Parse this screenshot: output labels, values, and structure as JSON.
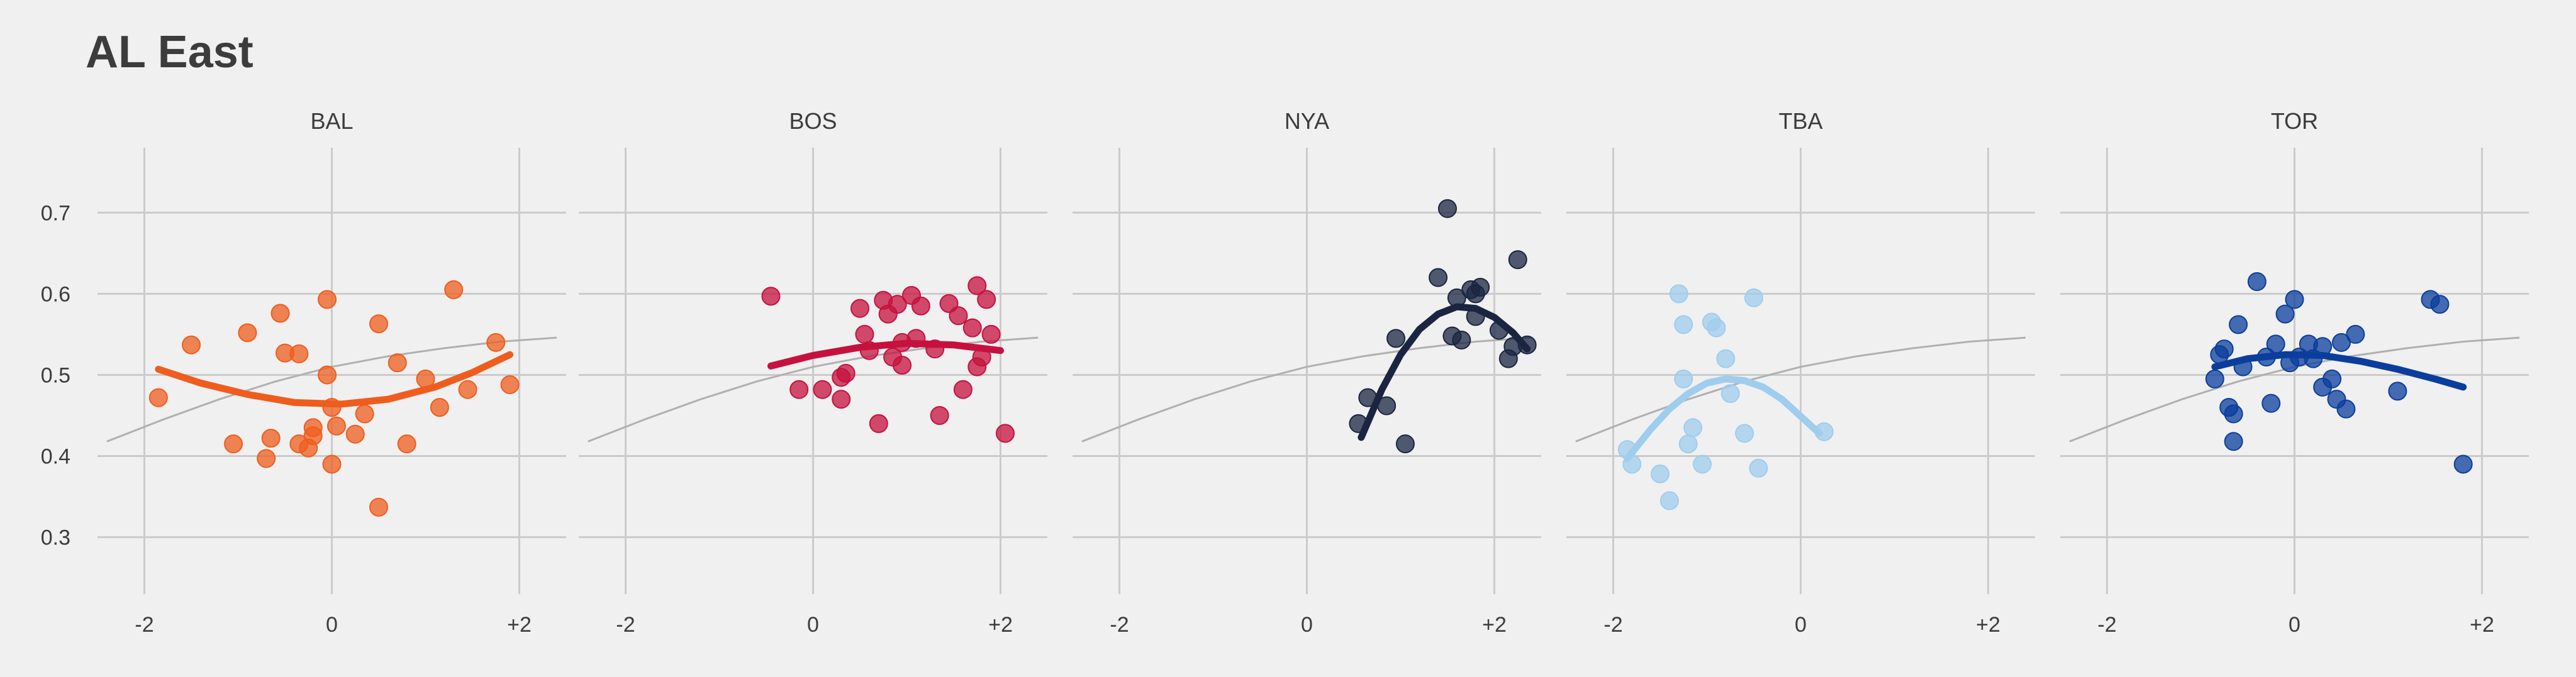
{
  "title": "AL East",
  "colors": {
    "background": "#f0f0f0",
    "grid": "#cbcbcb",
    "reference_curve": "#b0b0b0",
    "text": "#3c3c3c"
  },
  "chart_data": {
    "type": "scatter",
    "title": "AL East",
    "facets": [
      "BAL",
      "BOS",
      "NYA",
      "TBA",
      "TOR"
    ],
    "xlim": [
      -2.5,
      2.5
    ],
    "ylim": [
      0.23,
      0.78
    ],
    "x_ticks": [
      -2,
      0,
      2
    ],
    "x_tick_labels": [
      "-2",
      "0",
      "+2"
    ],
    "y_ticks": [
      0.3,
      0.4,
      0.5,
      0.6,
      0.7
    ],
    "y_tick_labels": [
      "0.3",
      "0.4",
      "0.5",
      "0.6",
      "0.7"
    ],
    "grid": true,
    "reference_curve": {
      "x": [
        -2.4,
        -1.8,
        -1.2,
        -0.6,
        0,
        0.6,
        1.2,
        1.8,
        2.4
      ],
      "y": [
        0.418,
        0.445,
        0.47,
        0.492,
        0.51,
        0.523,
        0.533,
        0.541,
        0.546
      ]
    },
    "series": [
      {
        "name": "BAL",
        "color": "#ef5d1e",
        "points": [
          [
            -1.85,
            0.472
          ],
          [
            -1.5,
            0.537
          ],
          [
            -1.05,
            0.415
          ],
          [
            -0.9,
            0.552
          ],
          [
            -0.7,
            0.397
          ],
          [
            -0.65,
            0.422
          ],
          [
            -0.55,
            0.576
          ],
          [
            -0.5,
            0.527
          ],
          [
            -0.35,
            0.526
          ],
          [
            -0.35,
            0.415
          ],
          [
            -0.25,
            0.41
          ],
          [
            -0.2,
            0.435
          ],
          [
            -0.2,
            0.425
          ],
          [
            -0.05,
            0.593
          ],
          [
            -0.05,
            0.5
          ],
          [
            0.0,
            0.39
          ],
          [
            0.0,
            0.46
          ],
          [
            0.05,
            0.437
          ],
          [
            0.25,
            0.427
          ],
          [
            0.35,
            0.452
          ],
          [
            0.5,
            0.337
          ],
          [
            0.5,
            0.563
          ],
          [
            0.7,
            0.515
          ],
          [
            0.8,
            0.415
          ],
          [
            1.0,
            0.495
          ],
          [
            1.15,
            0.46
          ],
          [
            1.3,
            0.605
          ],
          [
            1.45,
            0.482
          ],
          [
            1.75,
            0.54
          ],
          [
            1.9,
            0.488
          ]
        ],
        "fit": {
          "x": [
            -1.85,
            -1.4,
            -0.9,
            -0.4,
            0.1,
            0.6,
            1.1,
            1.5,
            1.9
          ],
          "y": [
            0.507,
            0.49,
            0.476,
            0.466,
            0.464,
            0.47,
            0.485,
            0.503,
            0.525
          ]
        }
      },
      {
        "name": "BOS",
        "color": "#c6113e",
        "points": [
          [
            -0.45,
            0.597
          ],
          [
            -0.15,
            0.482
          ],
          [
            0.1,
            0.482
          ],
          [
            0.3,
            0.47
          ],
          [
            0.3,
            0.497
          ],
          [
            0.35,
            0.502
          ],
          [
            0.5,
            0.582
          ],
          [
            0.55,
            0.55
          ],
          [
            0.6,
            0.53
          ],
          [
            0.7,
            0.44
          ],
          [
            0.75,
            0.592
          ],
          [
            0.8,
            0.575
          ],
          [
            0.85,
            0.522
          ],
          [
            0.9,
            0.587
          ],
          [
            0.95,
            0.54
          ],
          [
            0.95,
            0.512
          ],
          [
            1.05,
            0.598
          ],
          [
            1.1,
            0.545
          ],
          [
            1.15,
            0.585
          ],
          [
            1.3,
            0.532
          ],
          [
            1.35,
            0.45
          ],
          [
            1.45,
            0.588
          ],
          [
            1.55,
            0.573
          ],
          [
            1.6,
            0.482
          ],
          [
            1.7,
            0.558
          ],
          [
            1.75,
            0.61
          ],
          [
            1.75,
            0.51
          ],
          [
            1.8,
            0.522
          ],
          [
            1.85,
            0.593
          ],
          [
            1.9,
            0.55
          ],
          [
            2.05,
            0.428
          ]
        ],
        "fit": {
          "x": [
            -0.45,
            0.0,
            0.5,
            1.0,
            1.5,
            2.0
          ],
          "y": [
            0.511,
            0.524,
            0.534,
            0.539,
            0.537,
            0.53
          ]
        }
      },
      {
        "name": "NYA",
        "color": "#1b2541",
        "points": [
          [
            0.55,
            0.44
          ],
          [
            0.65,
            0.472
          ],
          [
            0.85,
            0.462
          ],
          [
            0.95,
            0.545
          ],
          [
            1.05,
            0.415
          ],
          [
            1.4,
            0.62
          ],
          [
            1.5,
            0.705
          ],
          [
            1.55,
            0.548
          ],
          [
            1.6,
            0.595
          ],
          [
            1.65,
            0.543
          ],
          [
            1.75,
            0.605
          ],
          [
            1.8,
            0.572
          ],
          [
            1.8,
            0.6
          ],
          [
            1.85,
            0.608
          ],
          [
            2.05,
            0.555
          ],
          [
            2.15,
            0.52
          ],
          [
            2.2,
            0.535
          ],
          [
            2.25,
            0.642
          ],
          [
            2.35,
            0.537
          ]
        ],
        "fit": {
          "x": [
            0.58,
            0.8,
            1.0,
            1.2,
            1.4,
            1.6,
            1.8,
            2.0,
            2.2,
            2.35
          ],
          "y": [
            0.423,
            0.482,
            0.525,
            0.556,
            0.575,
            0.584,
            0.582,
            0.571,
            0.552,
            0.532
          ]
        }
      },
      {
        "name": "TBA",
        "color": "#9fcdee",
        "points": [
          [
            -1.85,
            0.408
          ],
          [
            -1.8,
            0.39
          ],
          [
            -1.5,
            0.378
          ],
          [
            -1.4,
            0.345
          ],
          [
            -1.3,
            0.6
          ],
          [
            -1.25,
            0.495
          ],
          [
            -1.25,
            0.562
          ],
          [
            -1.2,
            0.415
          ],
          [
            -1.15,
            0.435
          ],
          [
            -1.05,
            0.39
          ],
          [
            -0.95,
            0.565
          ],
          [
            -0.9,
            0.558
          ],
          [
            -0.8,
            0.52
          ],
          [
            -0.75,
            0.477
          ],
          [
            -0.6,
            0.428
          ],
          [
            -0.5,
            0.595
          ],
          [
            -0.45,
            0.385
          ],
          [
            0.25,
            0.43
          ]
        ],
        "fit": {
          "x": [
            -1.85,
            -1.6,
            -1.4,
            -1.2,
            -1.0,
            -0.8,
            -0.6,
            -0.4,
            -0.2,
            0.2
          ],
          "y": [
            0.397,
            0.433,
            0.458,
            0.477,
            0.49,
            0.495,
            0.493,
            0.485,
            0.47,
            0.428
          ]
        }
      },
      {
        "name": "TOR",
        "color": "#0b3e9c",
        "points": [
          [
            -0.85,
            0.495
          ],
          [
            -0.8,
            0.525
          ],
          [
            -0.75,
            0.532
          ],
          [
            -0.7,
            0.46
          ],
          [
            -0.65,
            0.418
          ],
          [
            -0.65,
            0.452
          ],
          [
            -0.6,
            0.562
          ],
          [
            -0.55,
            0.51
          ],
          [
            -0.4,
            0.615
          ],
          [
            -0.3,
            0.522
          ],
          [
            -0.25,
            0.465
          ],
          [
            -0.2,
            0.538
          ],
          [
            -0.1,
            0.575
          ],
          [
            -0.05,
            0.515
          ],
          [
            0.0,
            0.593
          ],
          [
            0.05,
            0.522
          ],
          [
            0.15,
            0.538
          ],
          [
            0.2,
            0.52
          ],
          [
            0.3,
            0.535
          ],
          [
            0.3,
            0.485
          ],
          [
            0.4,
            0.495
          ],
          [
            0.45,
            0.47
          ],
          [
            0.5,
            0.54
          ],
          [
            0.55,
            0.458
          ],
          [
            0.65,
            0.55
          ],
          [
            1.1,
            0.48
          ],
          [
            1.45,
            0.593
          ],
          [
            1.55,
            0.587
          ],
          [
            1.8,
            0.39
          ]
        ],
        "fit": {
          "x": [
            -0.85,
            -0.5,
            -0.1,
            0.3,
            0.7,
            1.1,
            1.5,
            1.8
          ],
          "y": [
            0.51,
            0.52,
            0.525,
            0.524,
            0.517,
            0.507,
            0.495,
            0.485
          ]
        }
      }
    ]
  }
}
